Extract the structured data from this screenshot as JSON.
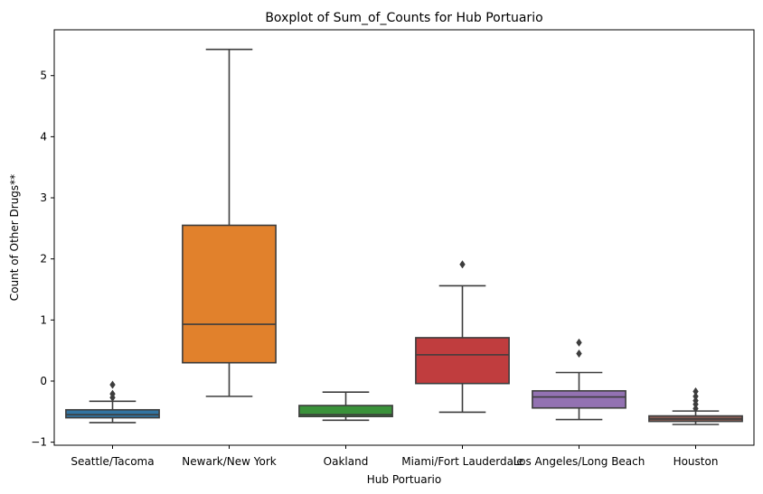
{
  "chart_data": {
    "type": "boxplot",
    "title": "Boxplot of Sum_of_Counts for Hub Portuario",
    "xlabel": "Hub Portuario",
    "ylabel": "Count of Other Drugs**",
    "ylim": [
      -1.05,
      5.75
    ],
    "yticks": [
      -1,
      0,
      1,
      2,
      3,
      4,
      5
    ],
    "yticklabels": [
      "−1",
      "0",
      "1",
      "2",
      "3",
      "4",
      "5"
    ],
    "grid": false,
    "categories": [
      "Seattle/Tacoma",
      "Newark/New York",
      "Oakland",
      "Miami/Fort Lauderdale",
      "Los Angeles/Long Beach",
      "Houston"
    ],
    "boxes": [
      {
        "name": "Seattle/Tacoma",
        "color": "#3274a1",
        "whisker_low": -0.68,
        "q1": -0.6,
        "median": -0.55,
        "q3": -0.47,
        "whisker_high": -0.33,
        "outliers": [
          -0.27,
          -0.21,
          -0.06
        ]
      },
      {
        "name": "Newark/New York",
        "color": "#e1812c",
        "whisker_low": -0.25,
        "q1": 0.3,
        "median": 0.93,
        "q3": 2.55,
        "whisker_high": 5.43,
        "outliers": []
      },
      {
        "name": "Oakland",
        "color": "#3a923a",
        "whisker_low": -0.64,
        "q1": -0.58,
        "median": -0.55,
        "q3": -0.4,
        "whisker_high": -0.18,
        "outliers": []
      },
      {
        "name": "Miami/Fort Lauderdale",
        "color": "#c03d3e",
        "whisker_low": -0.51,
        "q1": -0.04,
        "median": 0.43,
        "q3": 0.71,
        "whisker_high": 1.56,
        "outliers": [
          1.91
        ]
      },
      {
        "name": "Los Angeles/Long Beach",
        "color": "#9372b2",
        "whisker_low": -0.63,
        "q1": -0.44,
        "median": -0.26,
        "q3": -0.16,
        "whisker_high": 0.14,
        "outliers": [
          0.45,
          0.63
        ]
      },
      {
        "name": "Houston",
        "color": "#845b53",
        "whisker_low": -0.71,
        "q1": -0.66,
        "median": -0.62,
        "q3": -0.57,
        "whisker_high": -0.49,
        "outliers": [
          -0.45,
          -0.38,
          -0.32,
          -0.25,
          -0.17
        ]
      }
    ],
    "line_color": "#3d3d3d"
  }
}
